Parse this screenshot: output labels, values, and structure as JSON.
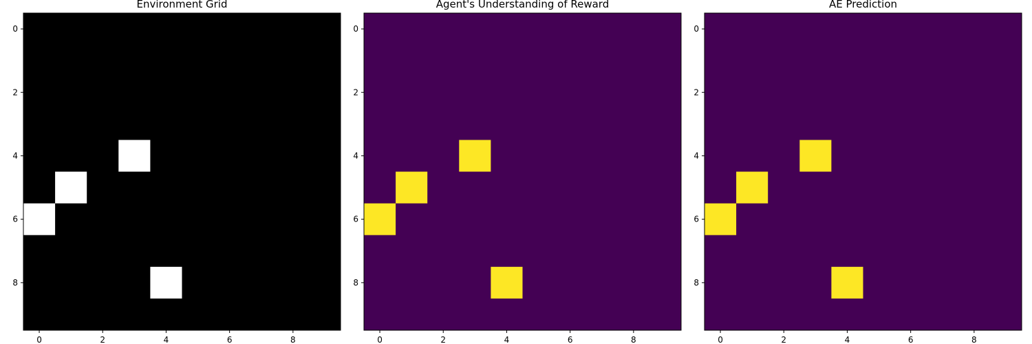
{
  "chart_data": [
    {
      "type": "heatmap",
      "title": "Environment Grid",
      "colormap": "gray",
      "colors": {
        "low": "#000000",
        "high": "#ffffff"
      },
      "rows": 10,
      "cols": 10,
      "xticks": [
        0,
        2,
        4,
        6,
        8
      ],
      "yticks": [
        0,
        2,
        4,
        6,
        8
      ],
      "cells_with_value_1": [
        [
          4,
          3
        ],
        [
          5,
          1
        ],
        [
          6,
          0
        ],
        [
          8,
          4
        ]
      ],
      "background_value": 0,
      "grid": false
    },
    {
      "type": "heatmap",
      "title": "Agent's Understanding of Reward",
      "colormap": "viridis",
      "colors": {
        "low": "#440154",
        "high": "#fde725"
      },
      "rows": 10,
      "cols": 10,
      "xticks": [
        0,
        2,
        4,
        6,
        8
      ],
      "yticks": [
        0,
        2,
        4,
        6,
        8
      ],
      "cells_with_value_1": [
        [
          4,
          3
        ],
        [
          5,
          1
        ],
        [
          6,
          0
        ],
        [
          8,
          4
        ]
      ],
      "background_value": 0,
      "grid": false
    },
    {
      "type": "heatmap",
      "title": "AE Prediction",
      "colormap": "viridis",
      "colors": {
        "low": "#440154",
        "high": "#fde725"
      },
      "rows": 10,
      "cols": 10,
      "xticks": [
        0,
        2,
        4,
        6,
        8
      ],
      "yticks": [
        0,
        2,
        4,
        6,
        8
      ],
      "cells_with_value_1": [
        [
          4,
          3
        ],
        [
          5,
          1
        ],
        [
          6,
          0
        ],
        [
          8,
          4
        ]
      ],
      "background_value": 0,
      "grid": false
    }
  ]
}
